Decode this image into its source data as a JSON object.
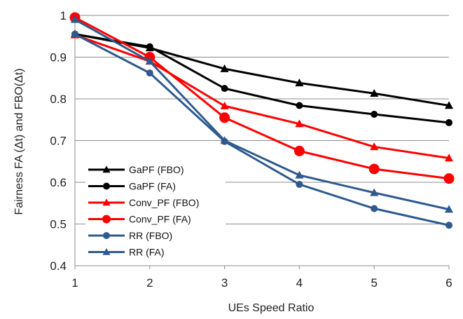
{
  "chart_data": {
    "type": "line",
    "xlabel": "UEs Speed Ratio",
    "ylabel": "Fairness FA (Δt) and FBO(Δt)",
    "x": [
      1,
      2,
      3,
      4,
      5,
      6
    ],
    "xlim": [
      1,
      6
    ],
    "ylim": [
      0.4,
      1
    ],
    "yticks": [
      "0.4",
      "0.5",
      "0.6",
      "0.7",
      "0.8",
      "0.9",
      "1"
    ],
    "xticks": [
      "1",
      "2",
      "3",
      "4",
      "5",
      "6"
    ],
    "grid": "horizontal",
    "legend_placement": "bottom-left",
    "series": [
      {
        "name": "GaPF (FBO)",
        "color": "#000000",
        "marker": "triangle",
        "values": [
          0.955,
          0.922,
          0.872,
          0.838,
          0.813,
          0.784
        ]
      },
      {
        "name": "GaPF (FA)",
        "color": "#000000",
        "marker": "circle",
        "values": [
          0.955,
          0.925,
          0.825,
          0.784,
          0.763,
          0.743
        ]
      },
      {
        "name": "Conv_PF (FBO)",
        "color": "#ff0000",
        "marker": "triangle",
        "values": [
          0.953,
          0.89,
          0.783,
          0.74,
          0.685,
          0.658
        ]
      },
      {
        "name": "Conv_PF (FA)",
        "color": "#ff0000",
        "marker": "circle",
        "values": [
          0.995,
          0.9,
          0.755,
          0.675,
          0.632,
          0.609
        ]
      },
      {
        "name": "RR (FBO)",
        "color": "#2e5a8e",
        "marker": "circle",
        "values": [
          0.955,
          0.862,
          0.698,
          0.595,
          0.537,
          0.497
        ]
      },
      {
        "name": "RR (FA)",
        "color": "#2e5a8e",
        "marker": "triangle",
        "values": [
          0.99,
          0.89,
          0.7,
          0.617,
          0.575,
          0.535
        ]
      }
    ]
  }
}
